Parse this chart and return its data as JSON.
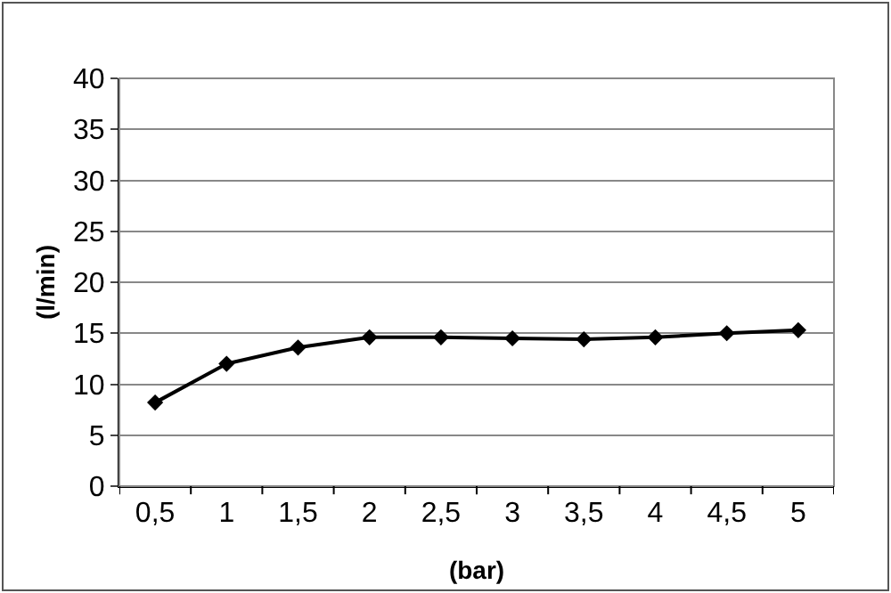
{
  "chart_data": {
    "type": "line",
    "xlabel": "(bar)",
    "ylabel": "(l/min)",
    "categories": [
      "0,5",
      "1",
      "1,5",
      "2",
      "2,5",
      "3",
      "3,5",
      "4",
      "4,5",
      "5"
    ],
    "series": [
      {
        "color": "#000000",
        "values": [
          8.2,
          12,
          13.6,
          14.6,
          14.6,
          14.5,
          14.4,
          14.6,
          15,
          15.3
        ]
      }
    ],
    "ylim": [
      0,
      40
    ],
    "yticks": [
      0,
      5,
      10,
      15,
      20,
      25,
      30,
      35,
      40
    ],
    "grid": "y",
    "marker": "diamond",
    "line_style": "solid",
    "legend": false
  }
}
